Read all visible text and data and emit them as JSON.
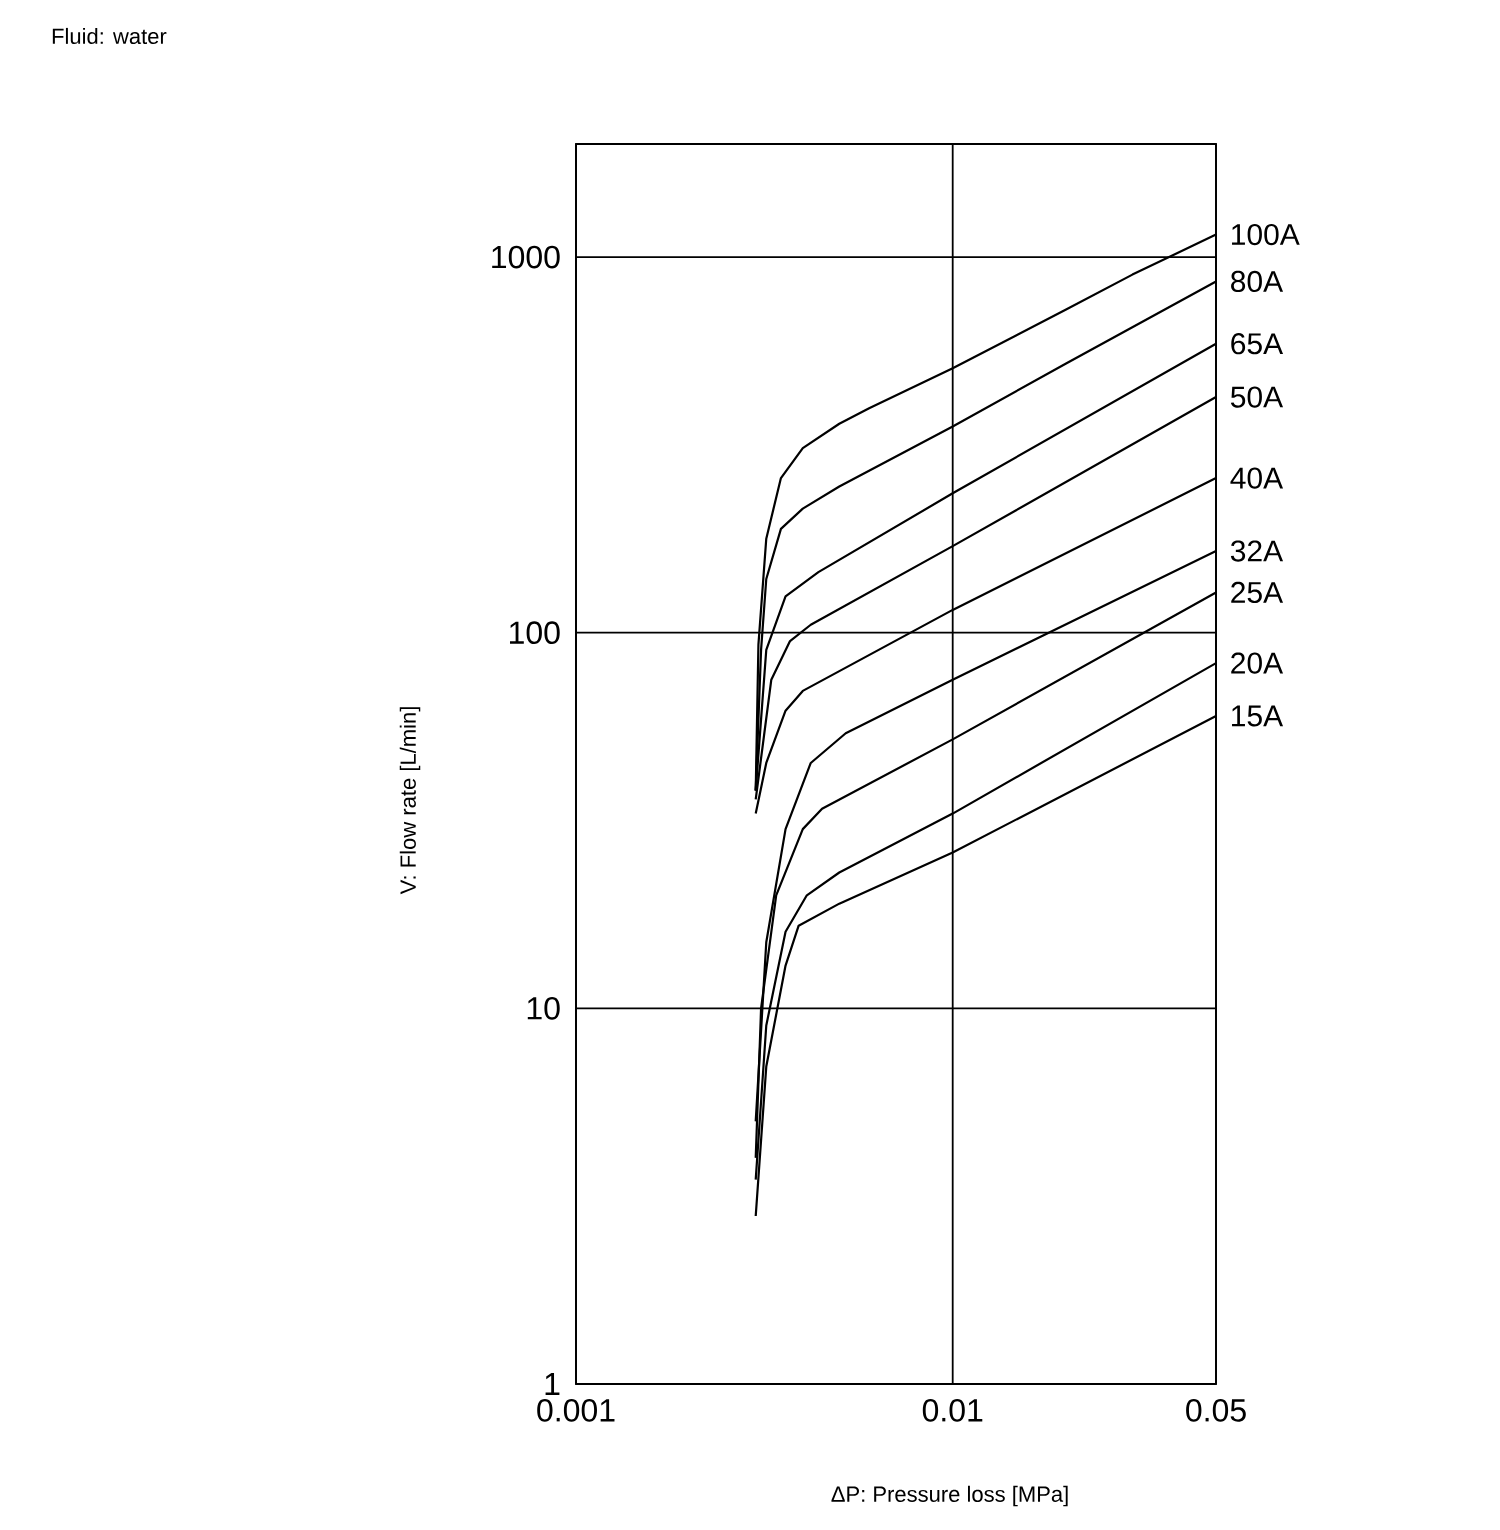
{
  "chart_data": {
    "type": "line",
    "title": "Fluid: water",
    "xlabel": "ΔP: Pressure loss [MPa]",
    "ylabel": "V: Flow rate [L/min]",
    "log": "xy",
    "grid": true,
    "xlim": [
      0.001,
      0.05
    ],
    "ylim": [
      1,
      2000
    ],
    "xticks": [
      0.001,
      0.01,
      0.05
    ],
    "yticks": [
      1,
      10,
      100,
      1000
    ],
    "series": [
      {
        "name": "100A",
        "color": "#000000",
        "x": [
          0.003,
          0.00305,
          0.0032,
          0.0035,
          0.004,
          0.005,
          0.006,
          0.01,
          0.02,
          0.03,
          0.05
        ],
        "values": [
          38,
          93,
          178,
          258,
          310,
          360,
          396,
          506,
          725,
          898,
          1148
        ]
      },
      {
        "name": "80A",
        "color": "#000000",
        "x": [
          0.003,
          0.0031,
          0.0032,
          0.0035,
          0.004,
          0.005,
          0.01,
          0.02,
          0.05
        ],
        "values": [
          38,
          90,
          139,
          189,
          214,
          245,
          354,
          521,
          861
        ]
      },
      {
        "name": "65A",
        "color": "#000000",
        "x": [
          0.003,
          0.0032,
          0.0036,
          0.0044,
          0.01,
          0.05
        ],
        "values": [
          38,
          90,
          125,
          145,
          235,
          588
        ]
      },
      {
        "name": "50A",
        "color": "#000000",
        "x": [
          0.003,
          0.0033,
          0.0037,
          0.0042,
          0.01,
          0.05
        ],
        "values": [
          36,
          75,
          95,
          105,
          170,
          424
        ]
      },
      {
        "name": "40A",
        "color": "#000000",
        "x": [
          0.003,
          0.0032,
          0.0036,
          0.004,
          0.01,
          0.05
        ],
        "values": [
          33,
          45,
          62,
          70,
          115,
          258
        ]
      },
      {
        "name": "32A",
        "color": "#000000",
        "x": [
          0.003,
          0.0032,
          0.0036,
          0.0042,
          0.0052,
          0.01,
          0.05
        ],
        "values": [
          5,
          15,
          30,
          45,
          54,
          75,
          165
        ]
      },
      {
        "name": "25A",
        "color": "#000000",
        "x": [
          0.003,
          0.0031,
          0.0034,
          0.004,
          0.0045,
          0.01,
          0.05
        ],
        "values": [
          4,
          10,
          20,
          30,
          34,
          52,
          128
        ]
      },
      {
        "name": "20A",
        "color": "#000000",
        "x": [
          0.003,
          0.0032,
          0.0036,
          0.0041,
          0.005,
          0.01,
          0.05
        ],
        "values": [
          3.5,
          9,
          16,
          20,
          23,
          33,
          83
        ]
      },
      {
        "name": "15A",
        "color": "#000000",
        "x": [
          0.003,
          0.0032,
          0.0036,
          0.0039,
          0.005,
          0.01,
          0.05
        ],
        "values": [
          2.8,
          7,
          13,
          16.6,
          19,
          26,
          60
        ]
      }
    ]
  }
}
